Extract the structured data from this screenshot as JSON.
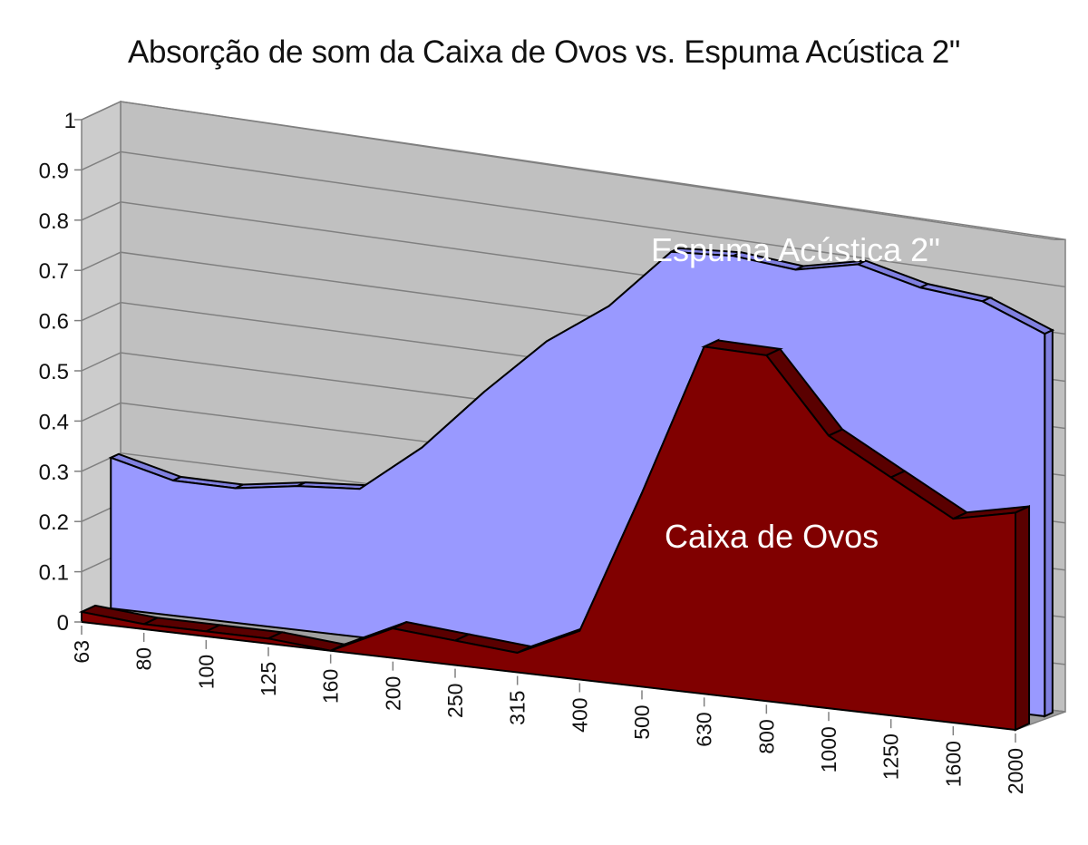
{
  "title": "Absorção de som da Caixa de Ovos vs. Espuma Acústica 2\"",
  "colors": {
    "espuma": "#9999ff",
    "espuma_top": "#8080e0",
    "caixa": "#800000",
    "caixa_top": "#5a0000",
    "wall": "#c0c0c0",
    "floor": "#a0a0a0",
    "gridline": "#808080"
  },
  "series_labels": {
    "espuma": "Espuma Acústica 2\"",
    "caixa": "Caixa de Ovos"
  },
  "y_ticks": [
    "0",
    "0.1",
    "0.2",
    "0.3",
    "0.4",
    "0.5",
    "0.6",
    "0.7",
    "0.8",
    "0.9",
    "1"
  ],
  "x_ticks": [
    "63",
    "80",
    "100",
    "125",
    "160",
    "200",
    "250",
    "315",
    "400",
    "500",
    "630",
    "800",
    "1000",
    "1250",
    "1600",
    "2000"
  ],
  "chart_data": {
    "type": "area",
    "subtype": "3d-area",
    "title": "Absorção de som da Caixa de Ovos vs. Espuma Acústica 2\"",
    "xlabel": "",
    "ylabel": "",
    "ylim": [
      0,
      1
    ],
    "grid": true,
    "legend": "inline labels",
    "categories": [
      "63",
      "80",
      "100",
      "125",
      "160",
      "200",
      "250",
      "315",
      "400",
      "500",
      "630",
      "800",
      "1000",
      "1250",
      "1600",
      "2000"
    ],
    "series": [
      {
        "name": "Espuma Acústica 2\"",
        "values": [
          0.3,
          0.27,
          0.27,
          0.29,
          0.3,
          0.4,
          0.53,
          0.65,
          0.74,
          0.87,
          0.88,
          0.87,
          0.9,
          0.87,
          0.86,
          0.81
        ]
      },
      {
        "name": "Caixa de Ovos",
        "values": [
          0.02,
          0.01,
          0.01,
          0.01,
          0.0,
          0.06,
          0.05,
          0.04,
          0.1,
          0.4,
          0.72,
          0.72,
          0.57,
          0.5,
          0.43,
          0.46
        ]
      }
    ]
  }
}
